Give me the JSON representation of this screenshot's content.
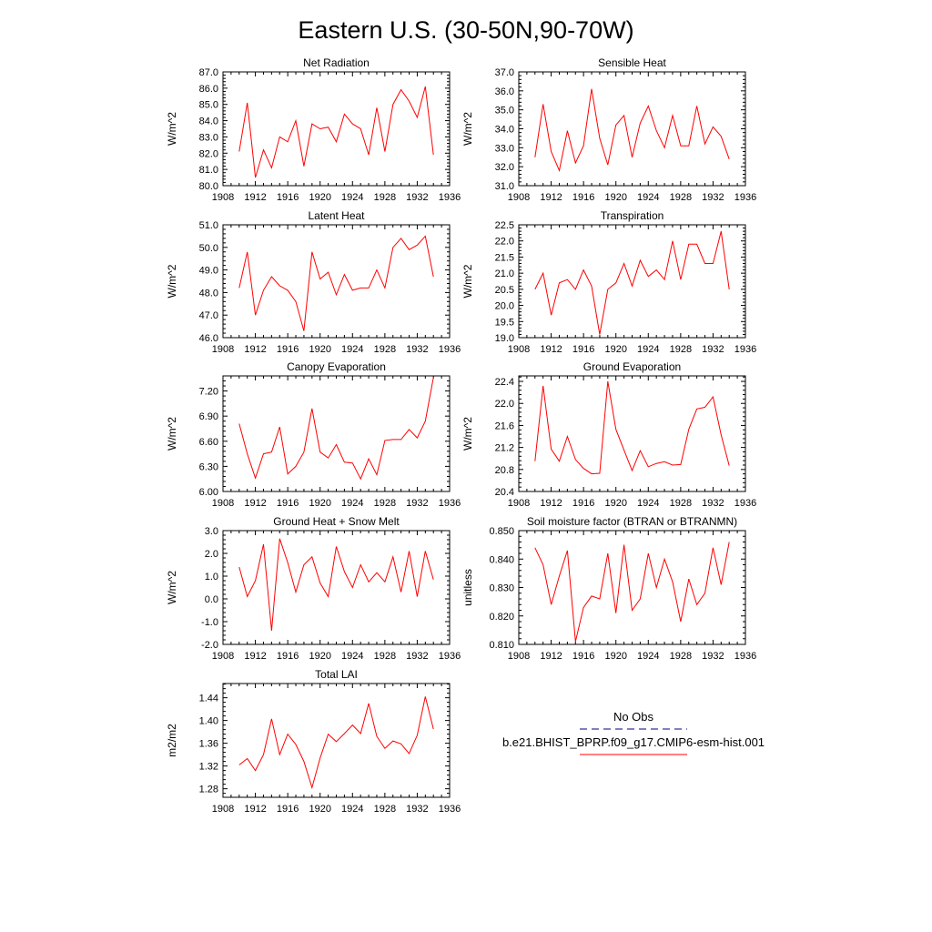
{
  "figure": {
    "title": "Eastern U.S. (30-50N,90-70W)"
  },
  "legend": {
    "entries": [
      {
        "label": "No Obs",
        "style": "dashed",
        "color": "#000080"
      },
      {
        "label": "b.e21.BHIST_BPRP.f09_g17.CMIP6-esm-hist.001",
        "style": "solid",
        "color": "#ff0000"
      }
    ]
  },
  "chart_data": [
    {
      "type": "line",
      "title": "Net Radiation",
      "ylabel": "W/m^2",
      "xlabel": "",
      "xlim": [
        1908,
        1936
      ],
      "ylim": [
        80.0,
        87.0
      ],
      "xticks": [
        1908,
        1912,
        1916,
        1920,
        1924,
        1928,
        1932,
        1936
      ],
      "yticks": [
        "80.0",
        "81.0",
        "82.0",
        "83.0",
        "84.0",
        "85.0",
        "86.0",
        "87.0"
      ],
      "series": [
        {
          "color": "#ff0000",
          "x": [
            1910,
            1911,
            1912,
            1913,
            1914,
            1915,
            1916,
            1917,
            1918,
            1919,
            1920,
            1921,
            1922,
            1923,
            1924,
            1925,
            1926,
            1927,
            1928,
            1929,
            1930,
            1931,
            1932,
            1933,
            1934
          ],
          "y": [
            82.1,
            85.1,
            80.5,
            82.2,
            81.1,
            83.0,
            82.7,
            84.0,
            81.2,
            83.8,
            83.5,
            83.6,
            82.7,
            84.4,
            83.8,
            83.5,
            81.9,
            84.8,
            82.1,
            85.0,
            85.9,
            85.2,
            84.2,
            86.1,
            81.9
          ]
        }
      ]
    },
    {
      "type": "line",
      "title": "Sensible Heat",
      "ylabel": "W/m^2",
      "xlabel": "",
      "xlim": [
        1908,
        1936
      ],
      "ylim": [
        31.0,
        37.0
      ],
      "xticks": [
        1908,
        1912,
        1916,
        1920,
        1924,
        1928,
        1932,
        1936
      ],
      "yticks": [
        "31.0",
        "32.0",
        "33.0",
        "34.0",
        "35.0",
        "36.0",
        "37.0"
      ],
      "series": [
        {
          "color": "#ff0000",
          "x": [
            1910,
            1911,
            1912,
            1913,
            1914,
            1915,
            1916,
            1917,
            1918,
            1919,
            1920,
            1921,
            1922,
            1923,
            1924,
            1925,
            1926,
            1927,
            1928,
            1929,
            1930,
            1931,
            1932,
            1933,
            1934
          ],
          "y": [
            32.5,
            35.3,
            32.8,
            31.8,
            33.9,
            32.2,
            33.1,
            36.1,
            33.5,
            32.1,
            34.2,
            34.7,
            32.5,
            34.3,
            35.2,
            33.9,
            33.0,
            34.7,
            33.1,
            33.1,
            35.2,
            33.2,
            34.1,
            33.6,
            32.4
          ]
        }
      ]
    },
    {
      "type": "line",
      "title": "Latent Heat",
      "ylabel": "W/m^2",
      "xlabel": "",
      "xlim": [
        1908,
        1936
      ],
      "ylim": [
        46.0,
        51.0
      ],
      "xticks": [
        1908,
        1912,
        1916,
        1920,
        1924,
        1928,
        1932,
        1936
      ],
      "yticks": [
        "46.0",
        "47.0",
        "48.0",
        "49.0",
        "50.0",
        "51.0"
      ],
      "series": [
        {
          "color": "#ff0000",
          "x": [
            1910,
            1911,
            1912,
            1913,
            1914,
            1915,
            1916,
            1917,
            1918,
            1919,
            1920,
            1921,
            1922,
            1923,
            1924,
            1925,
            1926,
            1927,
            1928,
            1929,
            1930,
            1931,
            1932,
            1933,
            1934
          ],
          "y": [
            48.2,
            49.8,
            47.0,
            48.1,
            48.7,
            48.3,
            48.1,
            47.6,
            46.3,
            49.8,
            48.6,
            48.9,
            47.9,
            48.8,
            48.1,
            48.2,
            48.2,
            49.0,
            48.2,
            50.0,
            50.4,
            49.9,
            50.1,
            50.5,
            48.7
          ]
        }
      ]
    },
    {
      "type": "line",
      "title": "Transpiration",
      "ylabel": "W/m^2",
      "xlabel": "",
      "xlim": [
        1908,
        1936
      ],
      "ylim": [
        19.0,
        22.5
      ],
      "xticks": [
        1908,
        1912,
        1916,
        1920,
        1924,
        1928,
        1932,
        1936
      ],
      "yticks": [
        "19.0",
        "19.5",
        "20.0",
        "20.5",
        "21.0",
        "21.5",
        "22.0",
        "22.5"
      ],
      "series": [
        {
          "color": "#ff0000",
          "x": [
            1910,
            1911,
            1912,
            1913,
            1914,
            1915,
            1916,
            1917,
            1918,
            1919,
            1920,
            1921,
            1922,
            1923,
            1924,
            1925,
            1926,
            1927,
            1928,
            1929,
            1930,
            1931,
            1932,
            1933,
            1934
          ],
          "y": [
            20.5,
            21.0,
            19.7,
            20.7,
            20.8,
            20.5,
            21.1,
            20.6,
            19.1,
            20.5,
            20.7,
            21.3,
            20.6,
            21.4,
            20.9,
            21.1,
            20.8,
            22.0,
            20.8,
            21.9,
            21.9,
            21.3,
            21.3,
            22.3,
            20.5
          ]
        }
      ]
    },
    {
      "type": "line",
      "title": "Canopy Evaporation",
      "ylabel": "W/m^2",
      "xlabel": "",
      "xlim": [
        1908,
        1936
      ],
      "ylim": [
        6.0,
        7.38
      ],
      "xticks": [
        1908,
        1912,
        1916,
        1920,
        1924,
        1928,
        1932,
        1936
      ],
      "yticks": [
        "6.00",
        "6.30",
        "6.60",
        "6.90",
        "7.20"
      ],
      "series": [
        {
          "color": "#ff0000",
          "x": [
            1910,
            1911,
            1912,
            1913,
            1914,
            1915,
            1916,
            1917,
            1918,
            1919,
            1920,
            1921,
            1922,
            1923,
            1924,
            1925,
            1926,
            1927,
            1928,
            1929,
            1930,
            1931,
            1932,
            1933,
            1934
          ],
          "y": [
            6.81,
            6.45,
            6.16,
            6.45,
            6.47,
            6.77,
            6.21,
            6.3,
            6.47,
            6.99,
            6.47,
            6.4,
            6.56,
            6.35,
            6.34,
            6.15,
            6.39,
            6.2,
            6.61,
            6.62,
            6.62,
            6.74,
            6.64,
            6.84,
            7.36
          ]
        }
      ]
    },
    {
      "type": "line",
      "title": "Ground Evaporation",
      "ylabel": "W/m^2",
      "xlabel": "",
      "xlim": [
        1908,
        1936
      ],
      "ylim": [
        20.4,
        22.5
      ],
      "xticks": [
        1908,
        1912,
        1916,
        1920,
        1924,
        1928,
        1932,
        1936
      ],
      "yticks": [
        "20.4",
        "20.8",
        "21.2",
        "21.6",
        "22.0",
        "22.4"
      ],
      "series": [
        {
          "color": "#ff0000",
          "x": [
            1910,
            1911,
            1912,
            1913,
            1914,
            1915,
            1916,
            1917,
            1918,
            1919,
            1920,
            1921,
            1922,
            1923,
            1924,
            1925,
            1926,
            1927,
            1928,
            1929,
            1930,
            1931,
            1932,
            1933,
            1934
          ],
          "y": [
            20.95,
            22.32,
            21.17,
            20.95,
            21.4,
            20.98,
            20.82,
            20.72,
            20.73,
            22.4,
            21.53,
            21.15,
            20.78,
            21.14,
            20.85,
            20.91,
            20.94,
            20.88,
            20.89,
            21.53,
            21.9,
            21.93,
            22.12,
            21.43,
            20.87
          ]
        }
      ]
    },
    {
      "type": "line",
      "title": "Ground Heat + Snow Melt",
      "ylabel": "W/m^2",
      "xlabel": "",
      "xlim": [
        1908,
        1936
      ],
      "ylim": [
        -2.0,
        3.0
      ],
      "xticks": [
        1908,
        1912,
        1916,
        1920,
        1924,
        1928,
        1932,
        1936
      ],
      "yticks": [
        "-2.0",
        "-1.0",
        "0.0",
        "1.0",
        "2.0",
        "3.0"
      ],
      "series": [
        {
          "color": "#ff0000",
          "x": [
            1910,
            1911,
            1912,
            1913,
            1914,
            1915,
            1916,
            1917,
            1918,
            1919,
            1920,
            1921,
            1922,
            1923,
            1924,
            1925,
            1926,
            1927,
            1928,
            1929,
            1930,
            1931,
            1932,
            1933,
            1934
          ],
          "y": [
            1.4,
            0.1,
            0.8,
            2.4,
            -1.4,
            2.65,
            1.6,
            0.3,
            1.5,
            1.85,
            0.7,
            0.1,
            2.3,
            1.2,
            0.5,
            1.5,
            0.75,
            1.15,
            0.75,
            1.85,
            0.3,
            2.1,
            0.1,
            2.1,
            0.85
          ]
        }
      ]
    },
    {
      "type": "line",
      "title": "Soil moisture factor (BTRAN or BTRANMN)",
      "ylabel": "unitless",
      "xlabel": "",
      "xlim": [
        1908,
        1936
      ],
      "ylim": [
        0.81,
        0.85
      ],
      "xticks": [
        1908,
        1912,
        1916,
        1920,
        1924,
        1928,
        1932,
        1936
      ],
      "yticks": [
        "0.810",
        "0.820",
        "0.830",
        "0.840",
        "0.850"
      ],
      "series": [
        {
          "color": "#ff0000",
          "x": [
            1910,
            1911,
            1912,
            1913,
            1914,
            1915,
            1916,
            1917,
            1918,
            1919,
            1920,
            1921,
            1922,
            1923,
            1924,
            1925,
            1926,
            1927,
            1928,
            1929,
            1930,
            1931,
            1932,
            1933,
            1934
          ],
          "y": [
            0.844,
            0.838,
            0.824,
            0.834,
            0.843,
            0.811,
            0.823,
            0.827,
            0.826,
            0.842,
            0.821,
            0.845,
            0.822,
            0.826,
            0.842,
            0.83,
            0.84,
            0.832,
            0.818,
            0.833,
            0.824,
            0.828,
            0.844,
            0.831,
            0.846
          ]
        }
      ]
    },
    {
      "type": "line",
      "title": "Total LAI",
      "ylabel": "m2/m2",
      "xlabel": "",
      "xlim": [
        1908,
        1936
      ],
      "ylim": [
        1.265,
        1.465
      ],
      "xticks": [
        1908,
        1912,
        1916,
        1920,
        1924,
        1928,
        1932,
        1936
      ],
      "yticks": [
        "1.28",
        "1.32",
        "1.36",
        "1.40",
        "1.44"
      ],
      "series": [
        {
          "color": "#ff0000",
          "x": [
            1910,
            1911,
            1912,
            1913,
            1914,
            1915,
            1916,
            1917,
            1918,
            1919,
            1920,
            1921,
            1922,
            1923,
            1924,
            1925,
            1926,
            1927,
            1928,
            1929,
            1930,
            1931,
            1932,
            1933,
            1934
          ],
          "y": [
            1.322,
            1.333,
            1.312,
            1.34,
            1.403,
            1.34,
            1.376,
            1.358,
            1.328,
            1.282,
            1.334,
            1.376,
            1.363,
            1.377,
            1.392,
            1.377,
            1.43,
            1.372,
            1.351,
            1.364,
            1.359,
            1.342,
            1.374,
            1.442,
            1.385
          ]
        }
      ]
    }
  ]
}
